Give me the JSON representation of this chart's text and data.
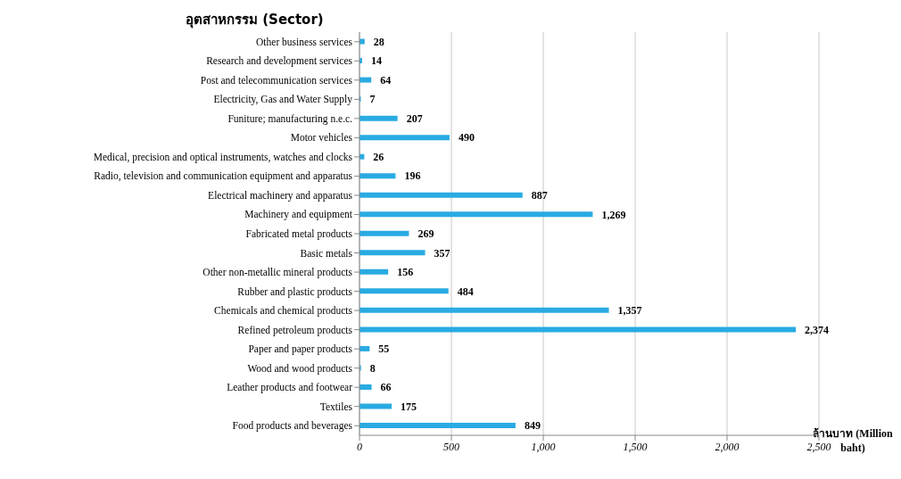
{
  "chart_data": {
    "type": "bar",
    "orientation": "horizontal",
    "ylabel": "อุตสาหกรรม (Sector)",
    "xlabel": "ล้านบาท (Million baht)",
    "categories": [
      "Other business services",
      "Research and development services",
      "Post and telecommunication services",
      "Electricity, Gas and Water Supply",
      "Funiture; manufacturing n.e.c.",
      "Motor vehicles",
      "Medical, precision and optical instruments, watches and clocks",
      "Radio, television and communication equipment and apparatus",
      "Electrical machinery and apparatus",
      "Machinery and equipment",
      "Fabricated metal products",
      "Basic metals",
      "Other non-metallic mineral products",
      "Rubber and plastic products",
      "Chemicals and chemical products",
      "Refined petroleum products",
      "Paper and paper products",
      "Wood and wood products",
      "Leather products and footwear",
      "Textiles",
      "Food products and beverages"
    ],
    "values": [
      28,
      14,
      64,
      7,
      207,
      490,
      26,
      196,
      887,
      1269,
      269,
      357,
      156,
      484,
      1357,
      2374,
      55,
      8,
      66,
      175,
      849
    ],
    "color": "#29abe2",
    "xlim": [
      0,
      2500
    ],
    "xticks": [
      0,
      500,
      {
        "value": 1000,
        "label": "1,000"
      },
      {
        "value": 1500,
        "label": "1,500"
      },
      {
        "value": 2000,
        "label": "2,000"
      },
      {
        "value": 2500,
        "label": "2,500"
      }
    ],
    "grid": "x",
    "value_labels": [
      "28",
      "14",
      "64",
      "7",
      "207",
      "490",
      "26",
      "196",
      "887",
      "1,269",
      "269",
      "357",
      "156",
      "484",
      "1,357",
      "2,374",
      "55",
      "8",
      "66",
      "175",
      "849"
    ]
  }
}
